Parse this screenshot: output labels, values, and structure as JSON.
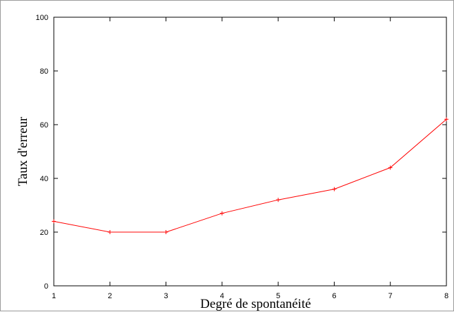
{
  "chart_data": {
    "type": "line",
    "title": "",
    "xlabel": "Degré de spontanéité",
    "ylabel": "Taux d'erreur",
    "xlim": [
      1,
      8
    ],
    "ylim": [
      0,
      100
    ],
    "xticks": [
      1,
      2,
      3,
      4,
      5,
      6,
      7,
      8
    ],
    "yticks": [
      0,
      20,
      40,
      60,
      80,
      100
    ],
    "grid": false,
    "legend": "none",
    "series": [
      {
        "color": "#ff0000",
        "marker": "plus",
        "x": [
          1,
          2,
          3,
          4,
          5,
          6,
          7,
          8
        ],
        "y": [
          24,
          20,
          20,
          27,
          32,
          36,
          44,
          62
        ]
      }
    ]
  }
}
